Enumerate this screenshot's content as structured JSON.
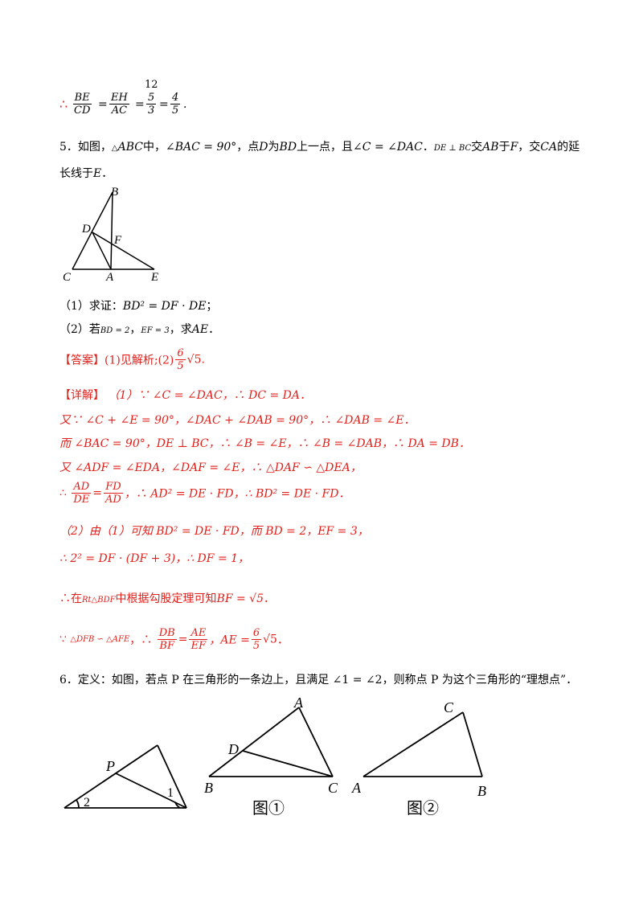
{
  "top_formula": {
    "therefore": "∴",
    "f1_num": "BE",
    "f1_den": "CD",
    "f2_num": "EH",
    "f2_den": "AC",
    "f3_top": "12",
    "f3_num": "5",
    "f3_den": "3",
    "f4_num": "4",
    "f4_den": "5",
    "eq": "=",
    "end": "."
  },
  "problem5": {
    "line1_pre": "5．如图，",
    "tri": "ABC",
    "mid1": "中，",
    "cond1": "∠BAC = 90°",
    "mid2": "，点",
    "d": "D",
    "mid3": "为",
    "bd": "BD",
    "mid4": "上一点，且",
    "cond2": "∠C = ∠DAC",
    "mid5": "．",
    "cond3": "DE ⊥ BC",
    "mid6": "交",
    "ab": "AB",
    "mid7": "于",
    "f": "F",
    "mid8": "，交",
    "ca": "CA",
    "mid9": "的延",
    "line2": "长线于",
    "e": "E",
    "line2_end": "．",
    "q1_pre": "（1）求证：",
    "q1_formula": "BD² = DF · DE",
    "q1_end": "；",
    "q2_pre": "（2）若",
    "q2_bd": "BD = 2",
    "q2_sep": "，",
    "q2_ef": "EF = 3",
    "q2_mid": "，求",
    "q2_ae": "AE",
    "q2_end": "．"
  },
  "figure5": {
    "B": "B",
    "D": "D",
    "F": "F",
    "C": "C",
    "A": "A",
    "E": "E"
  },
  "answer": {
    "tag": "【答案】",
    "text": "(1)见解析;(2)",
    "frac_num": "6",
    "frac_den": "5",
    "root": "√5",
    "end": "."
  },
  "detail": {
    "tag": "【详解】",
    "l1": "（1）∵ ∠C = ∠DAC，∴ DC = DA．",
    "l2": "又∵ ∠C + ∠E = 90°，∠DAC + ∠DAB = 90°，∴ ∠DAB = ∠E．",
    "l3": "而 ∠BAC = 90°，DE ⊥ BC，∴ ∠B = ∠E，∴ ∠B = ∠DAB，∴ DA = DB．",
    "l4": "又 ∠ADF = ∠EDA，∠DAF = ∠E，∴ △DAF ∽ △DEA，",
    "l5_therefore": "∴",
    "l5_f1_num": "AD",
    "l5_f1_den": "DE",
    "l5_f2_num": "FD",
    "l5_f2_den": "AD",
    "l5_rest1": "，∴ AD² = DE · FD，",
    "l5_rest2": "∴ BD² = DE · FD．",
    "l6": "（2）由（1）可知 BD² = DE · FD，而 BD = 2，EF = 3，",
    "l7": "∴ 2² = DF · (DF + 3)，∴ DF = 1，",
    "l8_pre": "∴在",
    "l8_rt": "Rt△BDF",
    "l8_mid": "中根据勾股定理可知",
    "l8_bf": "BF = √5",
    "l8_end": "．",
    "l9_because": "∵",
    "l9_sim": "△DFB ∽ △AFE",
    "l9_mid": "，∴",
    "l9_f1_num": "DB",
    "l9_f1_den": "BF",
    "l9_f2_num": "AE",
    "l9_f2_den": "EF",
    "l9_ae": "，AE =",
    "l9_fnum": "6",
    "l9_fden": "5",
    "l9_root": "√5",
    "l9_end": "．"
  },
  "problem6": {
    "text": "6．定义：如图，若点 P 在三角形的一条边上，且满足 ∠1 = ∠2，则称点 P 为这个三角形的“理想点”．"
  },
  "figure6": {
    "left": {
      "P": "P",
      "n1": "1",
      "n2": "2"
    },
    "fig1": {
      "A": "A",
      "D": "D",
      "B": "B",
      "C": "C",
      "caption": "图①"
    },
    "fig2": {
      "C": "C",
      "A": "A",
      "B": "B",
      "caption": "图②"
    }
  }
}
